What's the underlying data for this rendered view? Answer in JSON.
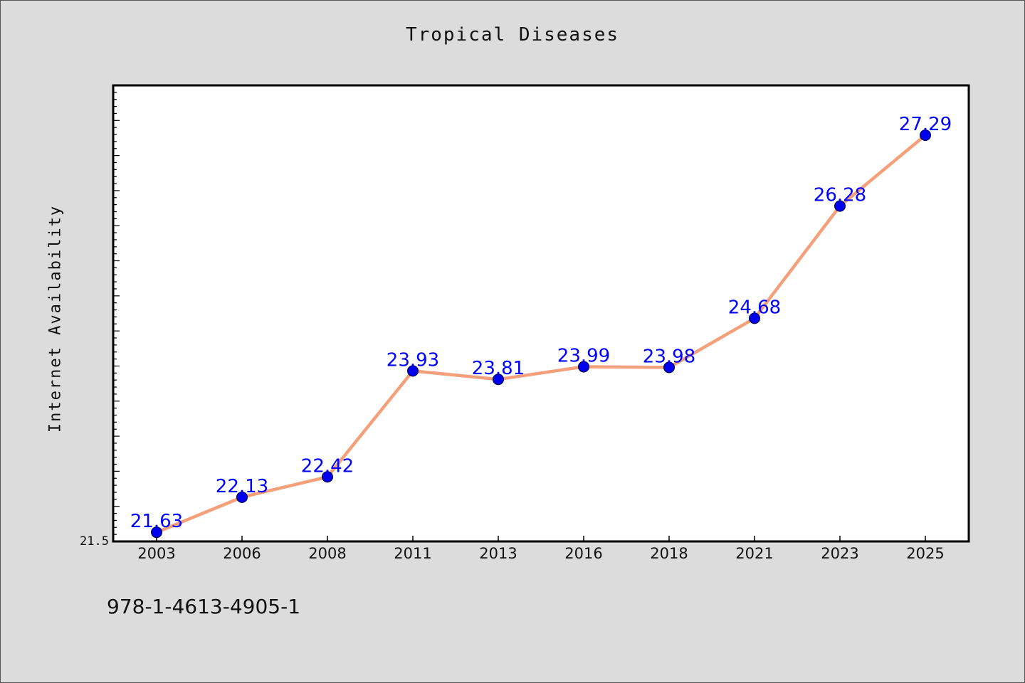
{
  "chart_data": {
    "type": "line",
    "title": "Tropical Diseases",
    "xlabel": "",
    "ylabel": "Internet Availability",
    "categories": [
      "2003",
      "2006",
      "2008",
      "2011",
      "2013",
      "2016",
      "2018",
      "2021",
      "2023",
      "2025"
    ],
    "x": [
      2003,
      2006,
      2008,
      2011,
      2013,
      2016,
      2018,
      2021,
      2023,
      2025
    ],
    "series": [
      {
        "values": [
          21.63,
          22.13,
          22.42,
          23.93,
          23.81,
          23.99,
          23.98,
          24.68,
          26.28,
          27.29
        ],
        "labels": [
          "21.63",
          "22.13",
          "22.42",
          "23.93",
          "23.81",
          "23.99",
          "23.98",
          "24.68",
          "26.28",
          "27.29"
        ]
      }
    ],
    "ylim": [
      21.5,
      28.0
    ],
    "yticks_labeled": [
      "21.5"
    ],
    "grid": false,
    "line_color": "#f4a07a",
    "marker_color": "#0000ee",
    "label_color": "#0000ff"
  },
  "footnote": "978-1-4613-4905-1"
}
